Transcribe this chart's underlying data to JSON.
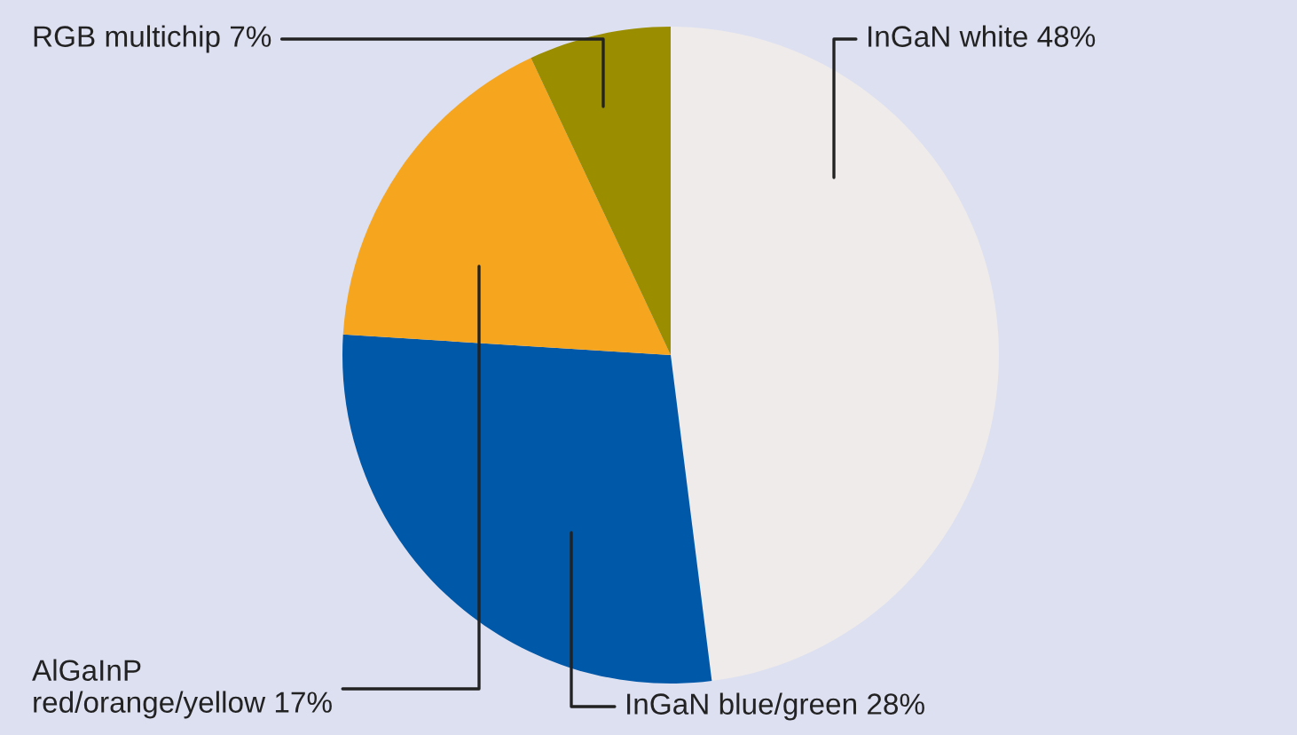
{
  "chart_data": {
    "type": "pie",
    "categories": [
      "InGaN white",
      "InGaN blue/green",
      "AlGaInP\nred/orange/yellow",
      "RGB multichip"
    ],
    "values": [
      48,
      28,
      17,
      7
    ],
    "value_labels": [
      "48%",
      "28%",
      "17%",
      "7%"
    ],
    "colors": [
      "#eeebea",
      "#0058a8",
      "#f6a51f",
      "#9a8d00"
    ]
  }
}
